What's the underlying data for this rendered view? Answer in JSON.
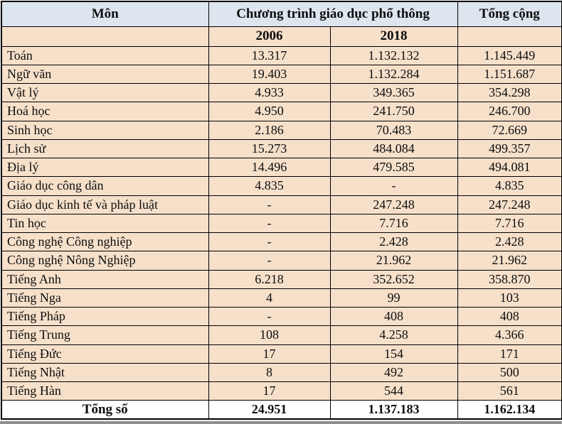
{
  "header": {
    "subject_label": "Môn",
    "program_label": "Chương trình giáo dục phổ thông",
    "total_label": "Tổng cộng",
    "year_2006": "2006",
    "year_2018": "2018"
  },
  "rows": [
    {
      "subject": "Toán",
      "y2006": "13.317",
      "y2018": "1.132.132",
      "total": "1.145.449"
    },
    {
      "subject": "Ngữ văn",
      "y2006": "19.403",
      "y2018": "1.132.284",
      "total": "1.151.687"
    },
    {
      "subject": "Vật lý",
      "y2006": "4.933",
      "y2018": "349.365",
      "total": "354.298"
    },
    {
      "subject": "Hoá học",
      "y2006": "4.950",
      "y2018": "241.750",
      "total": "246.700"
    },
    {
      "subject": "Sinh học",
      "y2006": "2.186",
      "y2018": "70.483",
      "total": "72.669"
    },
    {
      "subject": "Lịch sử",
      "y2006": "15.273",
      "y2018": "484.084",
      "total": "499.357"
    },
    {
      "subject": "Địa lý",
      "y2006": "14.496",
      "y2018": "479.585",
      "total": "494.081"
    },
    {
      "subject": "Giáo dục công dân",
      "y2006": "4.835",
      "y2018": "-",
      "total": "4.835"
    },
    {
      "subject": "Giáo dục kinh tế và pháp luật",
      "y2006": "-",
      "y2018": "247.248",
      "total": "247.248"
    },
    {
      "subject": "Tin học",
      "y2006": "-",
      "y2018": "7.716",
      "total": "7.716"
    },
    {
      "subject": "Công nghệ Công nghiệp",
      "y2006": "-",
      "y2018": "2.428",
      "total": "2.428"
    },
    {
      "subject": "Công nghệ Nông Nghiệp",
      "y2006": "-",
      "y2018": "21.962",
      "total": "21.962"
    },
    {
      "subject": "Tiếng Anh",
      "y2006": "6.218",
      "y2018": "352.652",
      "total": "358.870"
    },
    {
      "subject": "Tiếng Nga",
      "y2006": "4",
      "y2018": "99",
      "total": "103"
    },
    {
      "subject": "Tiếng Pháp",
      "y2006": "-",
      "y2018": "408",
      "total": "408"
    },
    {
      "subject": "Tiếng Trung",
      "y2006": "108",
      "y2018": "4.258",
      "total": "4.366"
    },
    {
      "subject": "Tiếng Đức",
      "y2006": "17",
      "y2018": "154",
      "total": "171"
    },
    {
      "subject": "Tiếng Nhật",
      "y2006": "8",
      "y2018": "492",
      "total": "500"
    },
    {
      "subject": "Tiếng Hàn",
      "y2006": "17",
      "y2018": "544",
      "total": "561"
    }
  ],
  "footer": {
    "label": "Tổng số",
    "y2006": "24.951",
    "y2018": "1.137.183",
    "total": "1.162.134"
  },
  "colors": {
    "header_bg": "#dde5ee",
    "row_bg": "#f6e0ca",
    "footer_bg": "#ffffff",
    "border": "#000000",
    "bottom_bar": "#8f8f8f"
  }
}
